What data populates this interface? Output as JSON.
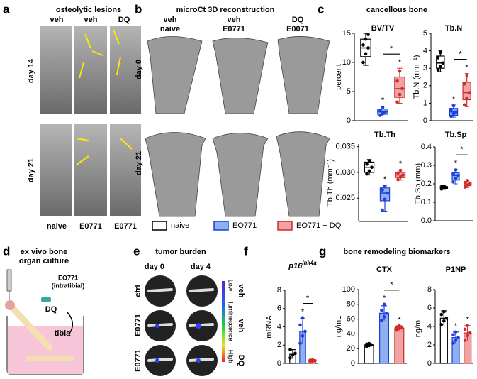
{
  "panel_labels": [
    "a",
    "b",
    "c",
    "d",
    "e",
    "f",
    "g"
  ],
  "panel_a": {
    "title": "osteolytic lesions",
    "columns": [
      "veh",
      "veh",
      "DQ"
    ],
    "rows": [
      "day 14",
      "day 21"
    ],
    "groups": [
      "naive",
      "E0771",
      "E0771"
    ]
  },
  "panel_b": {
    "title": "microCt 3D reconstruction",
    "columns": [
      [
        "veh",
        "naive"
      ],
      [
        "veh",
        "E0771"
      ],
      [
        "DQ",
        "E0071"
      ]
    ],
    "rows": [
      "day 0",
      "day 21"
    ]
  },
  "panel_c": {
    "title": "cancellous bone"
  },
  "legend": {
    "items": [
      {
        "name": "naive",
        "color": "#ffffff",
        "edge": "#000000"
      },
      {
        "name": "EO771",
        "color": "#8fb0f0",
        "edge": "#1f3fd8"
      },
      {
        "name": "EO771 + DQ",
        "color": "#f0a3a3",
        "edge": "#d02a2a"
      }
    ]
  },
  "panel_d": {
    "title": [
      "ex vivo bone",
      "organ culture"
    ],
    "injection": [
      "EO771",
      "(intratibial)"
    ],
    "drug": "DQ",
    "bone": "tibia"
  },
  "panel_e": {
    "title": "tumor burden",
    "columns": [
      "day 0",
      "day 4"
    ],
    "rows": [
      "ctrl",
      "E0771",
      "E0771"
    ],
    "treatments": [
      "veh",
      "veh",
      "DQ"
    ],
    "scale": [
      "Low",
      "luminescence",
      "High"
    ]
  },
  "panel_g": {
    "title": "bone remodeling biomarkers"
  },
  "chart_data": [
    {
      "type": "box",
      "title": "BV/TV",
      "ylabel": "percent",
      "ylim": [
        0,
        15
      ],
      "yticks": [
        0,
        5,
        10,
        15
      ],
      "group_marks": [
        null,
        "*",
        "*"
      ],
      "bracket_label": "*",
      "series": [
        {
          "color": "#ffffff",
          "edge": "#000000",
          "box": {
            "min": 9.5,
            "q1": 11,
            "median": 12.5,
            "q3": 14,
            "max": 15
          },
          "points": [
            10,
            11.5,
            12.5,
            13,
            14,
            14.8
          ]
        },
        {
          "color": "#8fb0f0",
          "edge": "#1f3fd8",
          "box": {
            "min": 0.8,
            "q1": 1.1,
            "median": 1.5,
            "q3": 2,
            "max": 2.5
          },
          "points": [
            0.9,
            1.2,
            1.5,
            1.8,
            2.3
          ]
        },
        {
          "color": "#f0a3a3",
          "edge": "#d02a2a",
          "box": {
            "min": 3,
            "q1": 4,
            "median": 5.5,
            "q3": 7.5,
            "max": 9
          },
          "points": [
            3.2,
            4.5,
            5.5,
            6.8,
            8.5
          ]
        }
      ]
    },
    {
      "type": "box",
      "title": "Tb.N",
      "ylabel": "Tb.N (mm⁻¹)",
      "ylim": [
        0,
        5
      ],
      "yticks": [
        0,
        1,
        2,
        3,
        4,
        5
      ],
      "group_marks": [
        null,
        "*",
        "*"
      ],
      "bracket_label": "*",
      "series": [
        {
          "color": "#ffffff",
          "edge": "#000000",
          "box": {
            "min": 2.8,
            "q1": 3,
            "median": 3.3,
            "q3": 3.7,
            "max": 4
          },
          "points": [
            2.9,
            3.1,
            3.3,
            3.6,
            3.9
          ]
        },
        {
          "color": "#8fb0f0",
          "edge": "#1f3fd8",
          "box": {
            "min": 0.2,
            "q1": 0.3,
            "median": 0.5,
            "q3": 0.7,
            "max": 0.9
          },
          "points": [
            0.25,
            0.4,
            0.5,
            0.65,
            0.85
          ]
        },
        {
          "color": "#f0a3a3",
          "edge": "#d02a2a",
          "box": {
            "min": 0.8,
            "q1": 1.2,
            "median": 1.6,
            "q3": 2.2,
            "max": 2.7
          },
          "points": [
            0.9,
            1.3,
            1.6,
            2.1,
            2.6
          ]
        }
      ]
    },
    {
      "type": "box",
      "title": "Tb.Th",
      "ylabel": "Tb.Th (mm⁻¹)",
      "ylim": [
        0.0205,
        0.0355
      ],
      "yticks": [
        0.025,
        {
          "value": 0.03,
          "label": "0.030"
        },
        0.035
      ],
      "group_marks": [
        null,
        "*",
        "*"
      ],
      "series": [
        {
          "color": "#ffffff",
          "edge": "#000000",
          "box": {
            "min": 0.0295,
            "q1": 0.03,
            "median": 0.031,
            "q3": 0.032,
            "max": 0.0325
          },
          "points": [
            0.0297,
            0.0303,
            0.031,
            0.0316,
            0.0323
          ]
        },
        {
          "color": "#8fb0f0",
          "edge": "#1f3fd8",
          "box": {
            "min": 0.0225,
            "q1": 0.0245,
            "median": 0.026,
            "q3": 0.027,
            "max": 0.0275
          },
          "points": [
            0.0227,
            0.0248,
            0.026,
            0.0266,
            0.0273
          ]
        },
        {
          "color": "#f0a3a3",
          "edge": "#d02a2a",
          "box": {
            "min": 0.0285,
            "q1": 0.029,
            "median": 0.0295,
            "q3": 0.03,
            "max": 0.0305
          },
          "points": [
            0.0286,
            0.0291,
            0.0295,
            0.0299,
            0.0304
          ]
        }
      ]
    },
    {
      "type": "box",
      "title": "Tb.Sp",
      "ylabel": "Tb.Sp (mm)",
      "ylim": [
        0,
        0.4
      ],
      "yticks": [
        {
          "value": 0,
          "label": "0.0"
        },
        0.1,
        0.2,
        0.3,
        0.4
      ],
      "group_marks": [
        null,
        "*",
        null
      ],
      "bracket_label": "*",
      "series": [
        {
          "color": "#ffffff",
          "edge": "#000000",
          "box": {
            "min": 0.17,
            "q1": 0.175,
            "median": 0.18,
            "q3": 0.185,
            "max": 0.19
          },
          "points": [
            0.172,
            0.177,
            0.18,
            0.184,
            0.188
          ]
        },
        {
          "color": "#8fb0f0",
          "edge": "#1f3fd8",
          "box": {
            "min": 0.2,
            "q1": 0.22,
            "median": 0.245,
            "q3": 0.26,
            "max": 0.28
          },
          "points": [
            0.21,
            0.23,
            0.245,
            0.255,
            0.275
          ]
        },
        {
          "color": "#f0a3a3",
          "edge": "#d02a2a",
          "box": {
            "min": 0.18,
            "q1": 0.19,
            "median": 0.2,
            "q3": 0.21,
            "max": 0.22
          },
          "points": [
            0.182,
            0.193,
            0.2,
            0.207,
            0.218
          ]
        }
      ]
    },
    {
      "type": "bar",
      "title": "p16",
      "title_sup": "Ink4a",
      "ylabel": "mRNA",
      "ylim": [
        0,
        8
      ],
      "yticks": [
        0,
        2,
        4,
        6,
        8
      ],
      "group_marks": [
        null,
        "*",
        null
      ],
      "bracket_label": "*",
      "series": [
        {
          "color": "#ffffff",
          "edge": "#000000",
          "value": 1,
          "error": 0.5,
          "points": [
            0.6,
            0.9,
            1.1,
            1.5
          ]
        },
        {
          "color": "#8fb0f0",
          "edge": "#1f3fd8",
          "value": 3.5,
          "error": 1.4,
          "points": [
            2.2,
            3,
            3.5,
            4.2,
            5
          ]
        },
        {
          "color": "#f0a3a3",
          "edge": "#d02a2a",
          "value": 0.3,
          "error": 0.1,
          "points": [
            0.2,
            0.25,
            0.3,
            0.35,
            0.4
          ]
        }
      ]
    },
    {
      "type": "bar",
      "title": "CTX",
      "ylabel": "ng/mL",
      "ylim": [
        0,
        100
      ],
      "yticks": [
        0,
        20,
        40,
        60,
        80,
        100
      ],
      "group_marks": [
        null,
        "*",
        "*"
      ],
      "bracket_label": "*",
      "series": [
        {
          "color": "#ffffff",
          "edge": "#000000",
          "value": 25,
          "error": 2,
          "points": [
            23,
            24,
            25,
            26,
            27
          ]
        },
        {
          "color": "#8fb0f0",
          "edge": "#1f3fd8",
          "value": 68,
          "error": 10,
          "points": [
            58,
            63,
            68,
            72,
            80
          ]
        },
        {
          "color": "#f0a3a3",
          "edge": "#d02a2a",
          "value": 48,
          "error": 3,
          "points": [
            45,
            47,
            48,
            49,
            51
          ]
        }
      ]
    },
    {
      "type": "bar",
      "title": "P1NP",
      "ylabel": "ng/mL",
      "ylim": [
        0,
        8
      ],
      "yticks": [
        0,
        2,
        4,
        6,
        8
      ],
      "group_marks": [
        null,
        "*",
        "*"
      ],
      "series": [
        {
          "color": "#ffffff",
          "edge": "#000000",
          "value": 4.9,
          "error": 0.8,
          "points": [
            4.2,
            4.6,
            4.9,
            5.3,
            5.6
          ]
        },
        {
          "color": "#8fb0f0",
          "edge": "#1f3fd8",
          "value": 2.8,
          "error": 0.6,
          "points": [
            2.2,
            2.5,
            2.8,
            3.1,
            3.4
          ]
        },
        {
          "color": "#f0a3a3",
          "edge": "#d02a2a",
          "value": 3.3,
          "error": 0.8,
          "points": [
            2.5,
            3,
            3.3,
            3.7,
            4.1
          ]
        }
      ]
    }
  ]
}
